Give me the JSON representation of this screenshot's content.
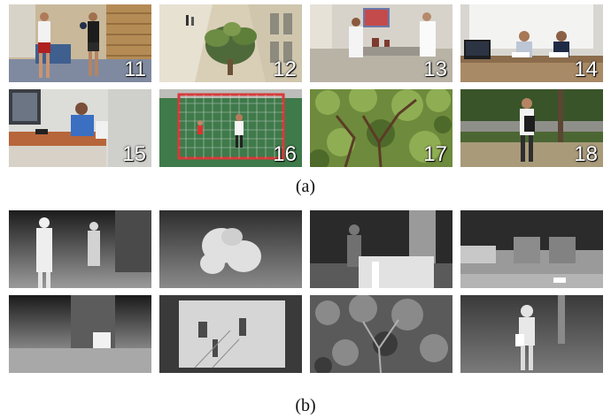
{
  "scenes": [
    "11",
    "12",
    "13",
    "14",
    "15",
    "16",
    "17",
    "18"
  ],
  "captions": {
    "a": "(a)",
    "b": "(b)"
  }
}
